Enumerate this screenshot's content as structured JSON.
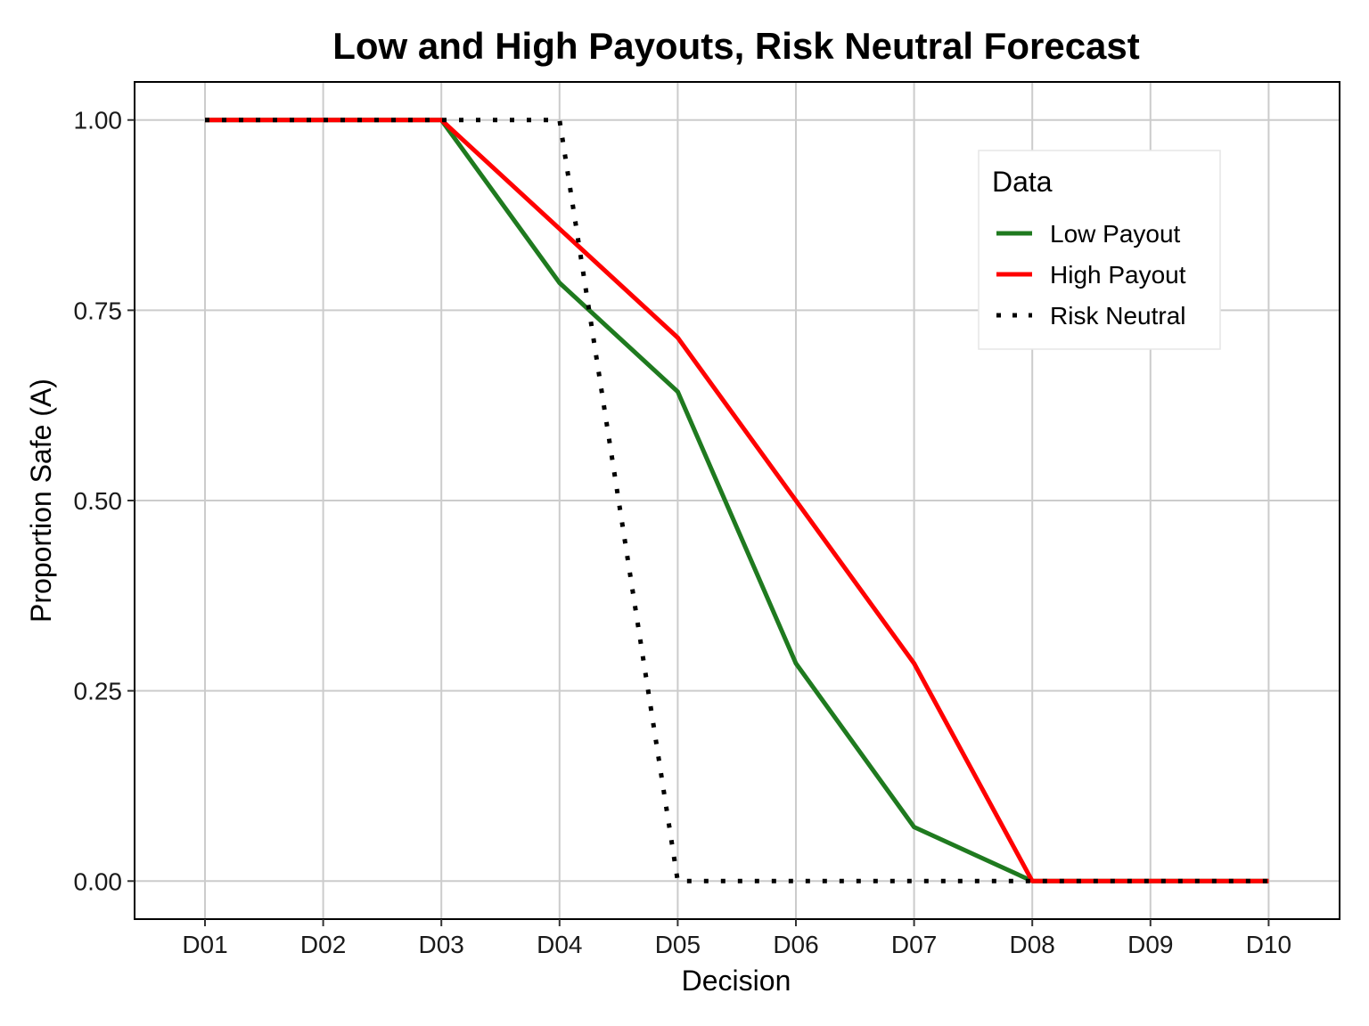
{
  "chart_data": {
    "type": "line",
    "title": "Low and High Payouts, Risk Neutral Forecast",
    "xlabel": "Decision",
    "ylabel": "Proportion Safe (A)",
    "categories": [
      "D01",
      "D02",
      "D03",
      "D04",
      "D05",
      "D06",
      "D07",
      "D08",
      "D09",
      "D10"
    ],
    "ylim": [
      -0.05,
      1.05
    ],
    "yticks": [
      0.0,
      0.25,
      0.5,
      0.75,
      1.0
    ],
    "ytick_labels": [
      "0.00",
      "0.25",
      "0.50",
      "0.75",
      "1.00"
    ],
    "grid": true,
    "legend": {
      "title": "Data",
      "position": "top-right"
    },
    "series": [
      {
        "name": "Low Payout",
        "color": "#1f7a1f",
        "style": "solid",
        "values": [
          1.0,
          1.0,
          1.0,
          0.786,
          0.643,
          0.286,
          0.071,
          0.0,
          0.0,
          0.0
        ]
      },
      {
        "name": "High Payout",
        "color": "#ff0000",
        "style": "solid",
        "values": [
          1.0,
          1.0,
          1.0,
          0.857,
          0.714,
          0.5,
          0.286,
          0.0,
          0.0,
          0.0
        ]
      },
      {
        "name": "Risk Neutral",
        "color": "#000000",
        "style": "dotted",
        "values": [
          1.0,
          1.0,
          1.0,
          1.0,
          0.0,
          0.0,
          0.0,
          0.0,
          0.0,
          0.0
        ]
      }
    ]
  }
}
